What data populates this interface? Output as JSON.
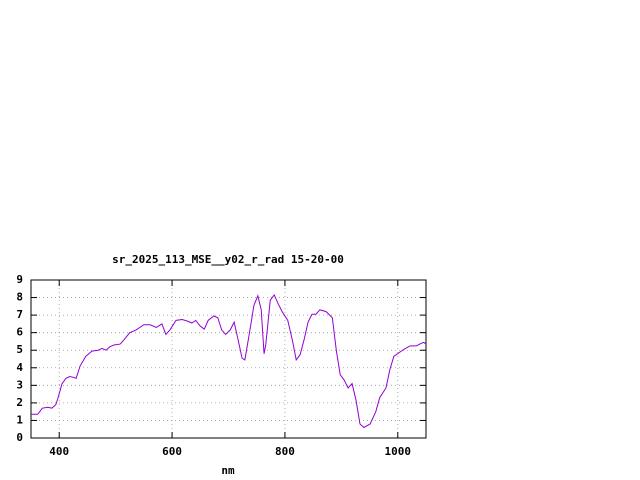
{
  "chart_data": {
    "type": "line",
    "title": "sr_2025_113_MSE__y02_r_rad 15-20-00",
    "x_label": "nm",
    "x": [
      350,
      362,
      370,
      380,
      387,
      394,
      398,
      405,
      412,
      419,
      426,
      430,
      437,
      447,
      458,
      469,
      476,
      483,
      490,
      497,
      508,
      515,
      525,
      536,
      550,
      561,
      572,
      582,
      589,
      596,
      607,
      618,
      628,
      635,
      642,
      649,
      657,
      664,
      674,
      681,
      688,
      695,
      703,
      710,
      717,
      724,
      729,
      738,
      745,
      752,
      758,
      763,
      766,
      774,
      781,
      788,
      795,
      805,
      813,
      820,
      827,
      834,
      841,
      848,
      855,
      862,
      873,
      884,
      891,
      898,
      905,
      912,
      919,
      926,
      933,
      940,
      951,
      961,
      968,
      979,
      986,
      993,
      1004,
      1011,
      1022,
      1033,
      1039,
      1046,
      1050
    ],
    "series": [
      {
        "color": "#9400d3",
        "values": [
          1.35,
          1.35,
          1.7,
          1.75,
          1.7,
          1.9,
          2.3,
          3.1,
          3.4,
          3.5,
          3.45,
          3.4,
          4.1,
          4.65,
          4.95,
          5.0,
          5.1,
          5.0,
          5.2,
          5.3,
          5.35,
          5.6,
          6.0,
          6.15,
          6.45,
          6.45,
          6.3,
          6.5,
          5.9,
          6.15,
          6.7,
          6.75,
          6.65,
          6.55,
          6.7,
          6.4,
          6.2,
          6.7,
          6.95,
          6.85,
          6.15,
          5.9,
          6.15,
          6.6,
          5.6,
          4.55,
          4.45,
          6.15,
          7.55,
          8.1,
          7.3,
          4.8,
          5.3,
          7.85,
          8.15,
          7.65,
          7.2,
          6.7,
          5.6,
          4.45,
          4.75,
          5.6,
          6.6,
          7.05,
          7.05,
          7.3,
          7.2,
          6.85,
          5.0,
          3.6,
          3.3,
          2.85,
          3.1,
          2.15,
          0.8,
          0.6,
          0.8,
          1.5,
          2.3,
          2.85,
          3.9,
          4.65,
          4.9,
          5.05,
          5.25,
          5.25,
          5.35,
          5.45,
          5.35
        ]
      }
    ],
    "xlim": [
      350,
      1050
    ],
    "xticks": [
      400,
      600,
      800,
      1000
    ],
    "ylim": [
      0,
      9
    ],
    "yticks": [
      0,
      1,
      2,
      3,
      4,
      5,
      6,
      7,
      8,
      9
    ],
    "grid": true
  }
}
